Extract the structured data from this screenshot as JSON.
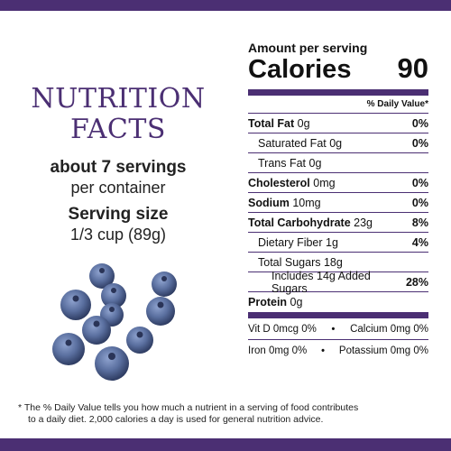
{
  "heading": {
    "line1": "NUTRITION",
    "line2": "FACTS"
  },
  "servings": {
    "count_bold": "about 7 servings",
    "count_rest": "per container",
    "size_label": "Serving size",
    "size_value": "1/3 cup (89g)"
  },
  "label": {
    "amount_per_serving": "Amount per serving",
    "calories_label": "Calories",
    "calories_value": "90",
    "dv_header": "% Daily Value*",
    "rows": [
      {
        "name": "Total Fat",
        "amount": "0g",
        "dv": "0%"
      },
      {
        "name": "Saturated Fat",
        "amount": "0g",
        "dv": "0%"
      },
      {
        "name": "Trans Fat",
        "amount": "0g",
        "dv": ""
      },
      {
        "name": "Cholesterol",
        "amount": "0mg",
        "dv": "0%"
      },
      {
        "name": "Sodium",
        "amount": "10mg",
        "dv": "0%"
      },
      {
        "name": "Total Carbohydrate",
        "amount": "23g",
        "dv": "8%"
      },
      {
        "name": "Dietary Fiber",
        "amount": "1g",
        "dv": "4%"
      },
      {
        "name": "Total Sugars",
        "amount": "18g",
        "dv": ""
      },
      {
        "name": "Includes 14g Added Sugars",
        "amount": "",
        "dv": "28%"
      },
      {
        "name": "Protein",
        "amount": "0g",
        "dv": ""
      }
    ],
    "vitamins": [
      {
        "left": "Vit D 0mcg 0%",
        "right": "Calcium 0mg 0%"
      },
      {
        "left": "Iron 0mg 0%",
        "right": "Potassium 0mg 0%"
      }
    ],
    "separator": "•"
  },
  "footnote": {
    "line1": "* The % Daily Value tells you how much a nutrient in a serving of food contributes",
    "line2": "to a daily diet. 2,000 calories a day is used for general nutrition advice."
  },
  "colors": {
    "brand_purple": "#4b2f73",
    "blueberry": "#4a5f8f"
  }
}
